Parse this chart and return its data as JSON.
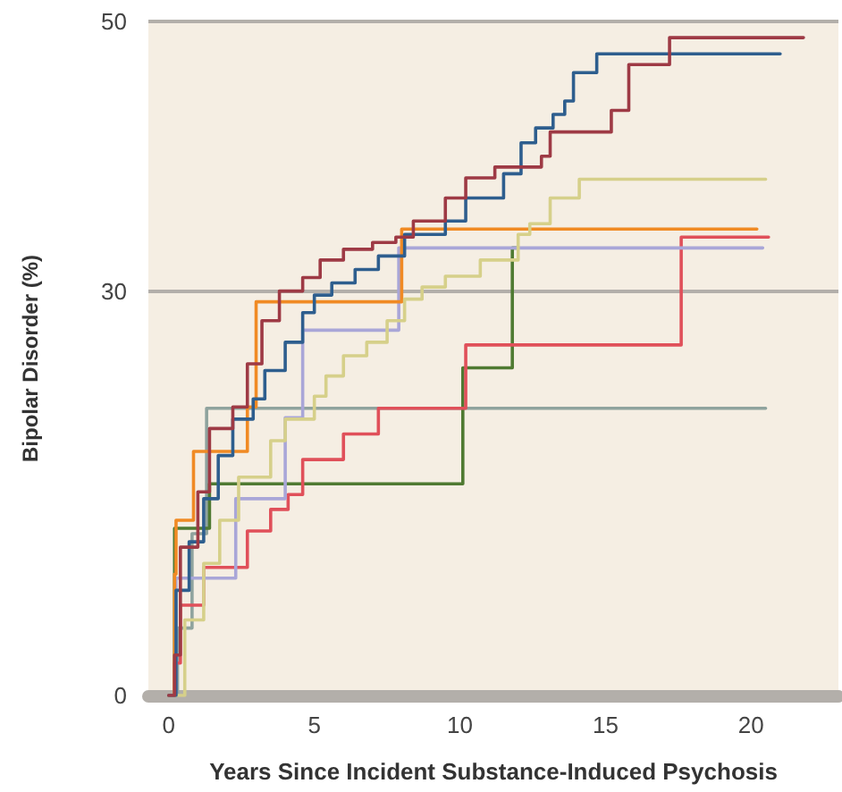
{
  "chart_data": {
    "type": "step",
    "xlabel": "Years Since Incident Substance-Induced Psychosis",
    "ylabel": "Bipolar Disorder (%)",
    "xlim": [
      -0.7,
      23
    ],
    "xticks": [
      0,
      5,
      10,
      15,
      20
    ],
    "ylim": [
      0,
      50
    ],
    "yticks": [
      0,
      30,
      50
    ],
    "grid": "y",
    "marker": "none",
    "line_style": "solid",
    "series": [
      {
        "color": "#8fa39e",
        "x": [
          0,
          0.3,
          0.8,
          1.3,
          20.5
        ],
        "values": [
          0,
          5,
          12,
          21.3,
          21.3
        ]
      },
      {
        "color": "#4f7a32",
        "x": [
          0,
          0.2,
          1.4,
          10.1,
          11.8,
          12
        ],
        "values": [
          0,
          12.4,
          15.7,
          24.3,
          33.2,
          33.2
        ]
      },
      {
        "color": "#e0505a",
        "x": [
          0,
          0.2,
          0.4,
          1.2,
          2.7,
          3.5,
          4.1,
          4.6,
          6,
          7.2,
          10.2,
          17.6,
          20.6
        ],
        "values": [
          0,
          2.4,
          6.7,
          9.5,
          12.2,
          13.8,
          14.9,
          17.5,
          19.4,
          21.3,
          26,
          34,
          34
        ]
      },
      {
        "color": "#a9a6d8",
        "x": [
          0,
          0.25,
          2.3,
          4,
          4.6,
          7.9,
          20.4
        ],
        "values": [
          0,
          8.7,
          14.6,
          20.6,
          27.1,
          33.2,
          33.2
        ]
      },
      {
        "color": "#f08a24",
        "x": [
          0,
          0.2,
          0.25,
          0.85,
          2.7,
          3,
          8,
          20.2
        ],
        "values": [
          0,
          9,
          13,
          18.1,
          21.4,
          29.2,
          34.6,
          34.6
        ]
      },
      {
        "color": "#d6d08a",
        "x": [
          0,
          0.55,
          1.2,
          1.75,
          2.4,
          3.5,
          4,
          5,
          5.4,
          6,
          6.8,
          7.5,
          8.1,
          8.7,
          9.5,
          10.7,
          12,
          12.4,
          13.1,
          14.1,
          20.5
        ],
        "values": [
          0,
          5.6,
          9.8,
          13,
          16.2,
          18.9,
          20.5,
          22.2,
          23.7,
          25.2,
          26.2,
          27.8,
          29.4,
          30.3,
          31.1,
          32.3,
          34.2,
          35,
          36.9,
          38.3,
          38.3
        ]
      },
      {
        "color": "#2e5e8e",
        "x": [
          0,
          0.25,
          0.7,
          1.2,
          1.7,
          2.2,
          2.9,
          3.3,
          4,
          4.6,
          5,
          5.6,
          6.4,
          7.2,
          8.1,
          9.5,
          10.2,
          11.5,
          12.1,
          12.6,
          13.2,
          13.6,
          13.9,
          14.7,
          21
        ],
        "values": [
          0,
          7.8,
          11.4,
          14.6,
          17.8,
          20.5,
          22,
          24.1,
          26.2,
          28.4,
          29.7,
          30.6,
          31.6,
          32.6,
          34.2,
          35.2,
          36.9,
          38.7,
          41,
          42.1,
          43.1,
          44.1,
          46.2,
          47.6,
          47.6
        ]
      },
      {
        "color": "#9e3a45",
        "x": [
          0,
          0.2,
          0.4,
          1,
          1.4,
          2.2,
          2.7,
          3.2,
          3.8,
          4.6,
          5.2,
          6,
          7,
          7.8,
          8.4,
          9.5,
          10.2,
          11.2,
          12.8,
          13.1,
          15.2,
          15.8,
          17.2,
          21.8
        ],
        "values": [
          0,
          3,
          11,
          15.1,
          19.8,
          21.4,
          24.6,
          27.8,
          30,
          31,
          32.3,
          33.1,
          33.6,
          34,
          35.2,
          36.9,
          38.4,
          39.2,
          40,
          41.8,
          43.4,
          46.8,
          48.8,
          48.8
        ]
      }
    ]
  }
}
